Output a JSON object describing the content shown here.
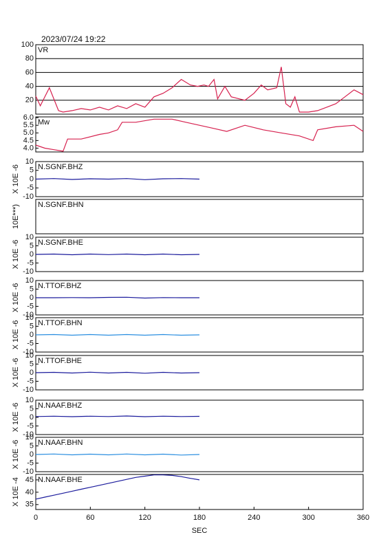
{
  "header": {
    "timestamp": "2023/07/24  19:22"
  },
  "chart_data": [
    {
      "type": "line",
      "title": "VR",
      "ylim": [
        0,
        100
      ],
      "yticks": [
        20,
        40,
        60,
        80,
        100
      ],
      "grid": true,
      "x": [
        0,
        5,
        15,
        25,
        30,
        40,
        50,
        60,
        70,
        80,
        90,
        100,
        110,
        120,
        130,
        140,
        150,
        160,
        170,
        178,
        185,
        190,
        196,
        200,
        208,
        215,
        230,
        240,
        248,
        255,
        265,
        270,
        275,
        280,
        285,
        290,
        300,
        310,
        320,
        330,
        340,
        350,
        360
      ],
      "series": [
        {
          "color": "#d6204e",
          "values": [
            26,
            12,
            38,
            5,
            3,
            5,
            8,
            6,
            10,
            6,
            12,
            8,
            15,
            10,
            25,
            30,
            38,
            50,
            42,
            40,
            42,
            40,
            50,
            22,
            40,
            25,
            20,
            30,
            42,
            35,
            38,
            68,
            15,
            10,
            25,
            3,
            3,
            5,
            10,
            15,
            25,
            35,
            28
          ]
        }
      ]
    },
    {
      "type": "line",
      "title": "Mw",
      "ylim": [
        3.75,
        6.05
      ],
      "yticks": [
        {
          "value": 4,
          "label": "4.0"
        },
        {
          "value": 4.5,
          "label": "4.5"
        },
        {
          "value": 5,
          "label": "5.0"
        },
        {
          "value": 5.5,
          "label": "5.5"
        },
        {
          "value": 6,
          "label": "6.0"
        }
      ],
      "x": [
        0,
        10,
        20,
        30,
        35,
        50,
        70,
        80,
        90,
        95,
        110,
        130,
        150,
        165,
        180,
        195,
        210,
        230,
        250,
        270,
        290,
        305,
        310,
        330,
        350,
        360
      ],
      "series": [
        {
          "color": "#d6204e",
          "values": [
            4.2,
            4.0,
            3.9,
            3.8,
            4.6,
            4.6,
            4.9,
            5.0,
            5.2,
            5.7,
            5.7,
            5.9,
            5.9,
            5.7,
            5.5,
            5.3,
            5.1,
            5.5,
            5.2,
            5.0,
            4.8,
            4.5,
            5.2,
            5.4,
            5.5,
            5.1
          ]
        }
      ]
    },
    {
      "type": "line",
      "title": "N.SGNF.BHZ",
      "ylabel": "X 10E -6",
      "ylim": [
        -10,
        10
      ],
      "yticks": [
        -10,
        -5,
        0,
        5,
        10
      ],
      "x": [
        0,
        20,
        40,
        60,
        80,
        100,
        120,
        140,
        160,
        180
      ],
      "series": [
        {
          "color": "#1a1a9c",
          "values": [
            0,
            0.3,
            -0.2,
            0.2,
            0,
            0.3,
            -0.3,
            0.2,
            0.3,
            0
          ]
        }
      ]
    },
    {
      "type": "line",
      "title": "N.SGNF.BHN",
      "ylabel": "10E***)"
    },
    {
      "type": "line",
      "title": "N.SGNF.BHE",
      "ylabel": "X 10E -6",
      "ylim": [
        -10,
        10
      ],
      "yticks": [
        -10,
        -5,
        0,
        5,
        10
      ],
      "x": [
        0,
        20,
        40,
        60,
        80,
        100,
        120,
        140,
        160,
        180
      ],
      "series": [
        {
          "color": "#1a1a9c",
          "values": [
            0,
            0.2,
            -0.2,
            0.2,
            -0.1,
            0.2,
            -0.2,
            0.2,
            -0.2,
            0
          ]
        }
      ]
    },
    {
      "type": "line",
      "title": "N.TTOF.BHZ",
      "ylabel": "X 10E -6",
      "ylim": [
        -10,
        10
      ],
      "yticks": [
        -10,
        -5,
        0,
        5,
        10
      ],
      "x": [
        0,
        20,
        40,
        60,
        80,
        100,
        120,
        140,
        160,
        180
      ],
      "series": [
        {
          "color": "#1a1a9c",
          "values": [
            0,
            0,
            0.1,
            0,
            0.2,
            0.3,
            -0.2,
            0.1,
            0,
            0
          ]
        }
      ]
    },
    {
      "type": "line",
      "title": "N.TTOF.BHN",
      "ylabel": "X 10E -6",
      "ylim": [
        -10,
        10
      ],
      "yticks": [
        -10,
        -5,
        0,
        5,
        10
      ],
      "x": [
        0,
        20,
        40,
        60,
        80,
        100,
        120,
        140,
        160,
        180
      ],
      "series": [
        {
          "color": "#2a8ee0",
          "values": [
            0,
            0.2,
            -0.2,
            0.2,
            -0.2,
            0.2,
            -0.2,
            0.2,
            -0.2,
            0
          ]
        }
      ]
    },
    {
      "type": "line",
      "title": "N.TTOF.BHE",
      "ylabel": "X 10E -6",
      "ylim": [
        -10,
        10
      ],
      "yticks": [
        -10,
        -5,
        0,
        5,
        10
      ],
      "x": [
        0,
        20,
        40,
        60,
        80,
        100,
        120,
        140,
        160,
        180
      ],
      "series": [
        {
          "color": "#1a1a9c",
          "values": [
            0,
            0.2,
            -0.2,
            0.3,
            -0.2,
            0.2,
            -0.3,
            0.2,
            -0.2,
            0
          ]
        }
      ]
    },
    {
      "type": "line",
      "title": "N.NAAF.BHZ",
      "ylabel": "X 10E -6",
      "ylim": [
        -10,
        10
      ],
      "yticks": [
        -10,
        -5,
        0,
        5,
        10
      ],
      "x": [
        0,
        20,
        40,
        60,
        80,
        100,
        120,
        140,
        160,
        180
      ],
      "series": [
        {
          "color": "#1a1a9c",
          "values": [
            0.5,
            0.7,
            0.4,
            0.7,
            0.5,
            0.8,
            0.4,
            0.7,
            0.5,
            0.6
          ]
        }
      ]
    },
    {
      "type": "line",
      "title": "N.NAAF.BHN",
      "ylabel": "X 10E -6",
      "ylim": [
        -10,
        10
      ],
      "yticks": [
        -10,
        -5,
        0,
        5,
        10
      ],
      "x": [
        0,
        20,
        40,
        60,
        80,
        100,
        120,
        140,
        160,
        180
      ],
      "series": [
        {
          "color": "#2a8ee0",
          "values": [
            0,
            0.3,
            -0.2,
            0.2,
            -0.2,
            0.3,
            -0.2,
            0.2,
            -0.3,
            0
          ]
        }
      ]
    },
    {
      "type": "line",
      "title": "N.NAAF.BHE",
      "ylabel": "X 10E -4",
      "ylim": [
        33,
        47.2
      ],
      "yticks": [
        35,
        40,
        45
      ],
      "xlabel": "SEC",
      "xlim": [
        0,
        360
      ],
      "xticks": [
        0,
        60,
        120,
        180,
        240,
        300,
        360
      ],
      "x": [
        0,
        10,
        20,
        30,
        40,
        50,
        60,
        70,
        80,
        90,
        100,
        110,
        120,
        130,
        140,
        150,
        160,
        170,
        180
      ],
      "series": [
        {
          "color": "#1a1a9c",
          "values": [
            37.2,
            38,
            38.8,
            39.6,
            40.4,
            41.2,
            42,
            42.8,
            43.6,
            44.4,
            45.2,
            46,
            46.5,
            47,
            47,
            46.8,
            46.3,
            45.6,
            45
          ]
        }
      ]
    }
  ]
}
